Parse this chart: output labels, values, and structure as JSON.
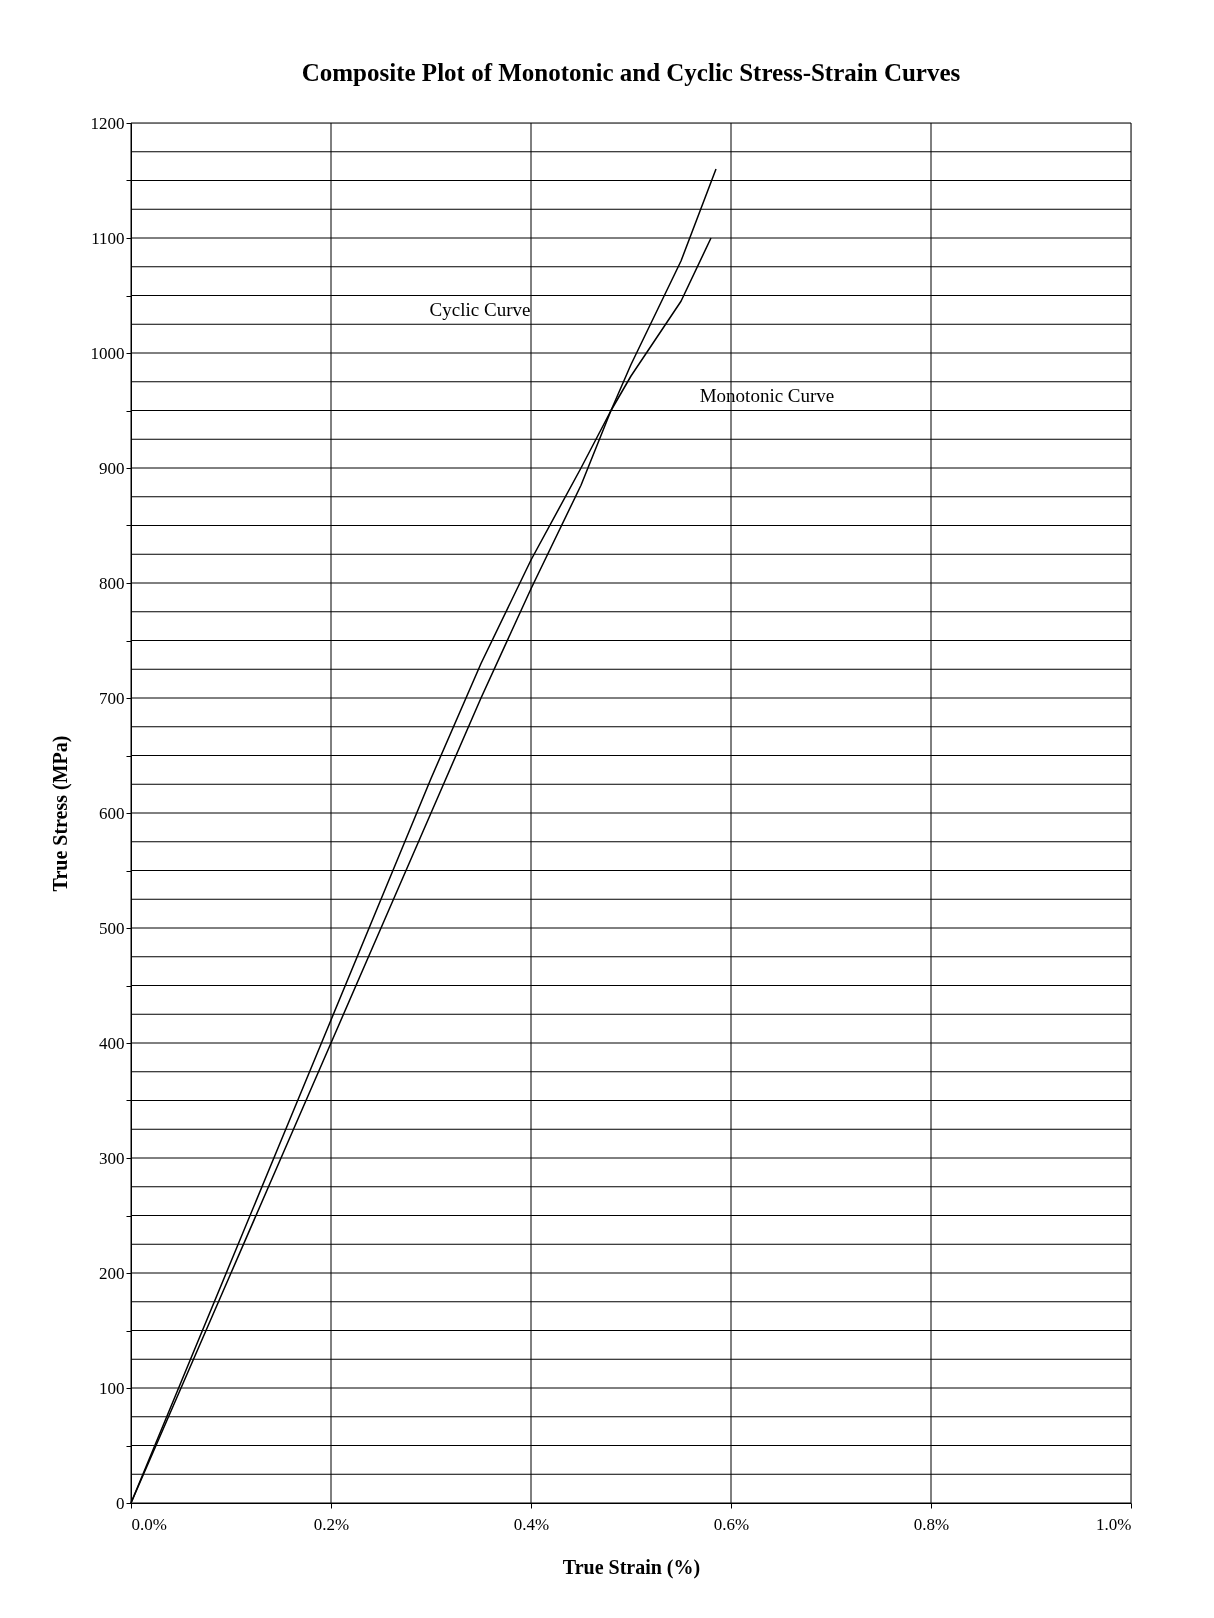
{
  "chart_data": {
    "type": "line",
    "title": "Composite Plot of Monotonic and Cyclic Stress-Strain Curves",
    "xlabel": "True Strain  (%)",
    "ylabel": "True Stress  (MPa)",
    "xlim": [
      0,
      1.0
    ],
    "ylim": [
      0,
      1200
    ],
    "xticks": [
      {
        "value": 0,
        "label": "0.0%"
      },
      {
        "value": 0.2,
        "label": "0.2%"
      },
      {
        "value": 0.4,
        "label": "0.4%"
      },
      {
        "value": 0.6,
        "label": "0.6%"
      },
      {
        "value": 0.8,
        "label": "0.8%"
      },
      {
        "value": 1.0,
        "label": "1.0%"
      }
    ],
    "yticks": [
      0,
      {
        "value": 25,
        "label": null
      },
      {
        "value": 50,
        "label": null
      },
      {
        "value": 75,
        "label": null
      },
      100,
      {
        "value": 125,
        "label": null
      },
      {
        "value": 150,
        "label": null
      },
      {
        "value": 175,
        "label": null
      },
      200,
      {
        "value": 225,
        "label": null
      },
      {
        "value": 250,
        "label": null
      },
      {
        "value": 275,
        "label": null
      },
      300,
      {
        "value": 325,
        "label": null
      },
      {
        "value": 350,
        "label": null
      },
      {
        "value": 375,
        "label": null
      },
      400,
      {
        "value": 425,
        "label": null
      },
      {
        "value": 450,
        "label": null
      },
      {
        "value": 475,
        "label": null
      },
      500,
      {
        "value": 525,
        "label": null
      },
      {
        "value": 550,
        "label": null
      },
      {
        "value": 575,
        "label": null
      },
      600,
      {
        "value": 625,
        "label": null
      },
      {
        "value": 650,
        "label": null
      },
      {
        "value": 675,
        "label": null
      },
      700,
      {
        "value": 725,
        "label": null
      },
      {
        "value": 750,
        "label": null
      },
      {
        "value": 775,
        "label": null
      },
      800,
      {
        "value": 825,
        "label": null
      },
      {
        "value": 850,
        "label": null
      },
      {
        "value": 875,
        "label": null
      },
      900,
      {
        "value": 925,
        "label": null
      },
      {
        "value": 950,
        "label": null
      },
      {
        "value": 975,
        "label": null
      },
      1000,
      {
        "value": 1025,
        "label": null
      },
      {
        "value": 1050,
        "label": null
      },
      {
        "value": 1075,
        "label": null
      },
      1100,
      {
        "value": 1125,
        "label": null
      },
      {
        "value": 1150,
        "label": null
      },
      {
        "value": 1175,
        "label": null
      },
      1200
    ],
    "grid": true,
    "marker": "none",
    "line_style": "solid",
    "series": [
      {
        "color": "#000000",
        "x": [
          0,
          0.05,
          0.1,
          0.15,
          0.2,
          0.25,
          0.3,
          0.35,
          0.4,
          0.45,
          0.48,
          0.5,
          0.55,
          0.58
        ],
        "values": [
          0,
          105,
          210,
          315,
          420,
          525,
          630,
          730,
          820,
          900,
          950,
          980,
          1045,
          1100
        ]
      },
      {
        "color": "#000000",
        "x": [
          0,
          0.05,
          0.1,
          0.15,
          0.2,
          0.25,
          0.3,
          0.35,
          0.4,
          0.45,
          0.48,
          0.5,
          0.55,
          0.585
        ],
        "values": [
          0,
          100,
          200,
          300,
          400,
          500,
          600,
          700,
          795,
          885,
          950,
          990,
          1080,
          1160
        ]
      }
    ],
    "annotations": [
      "Cyclic Curve",
      "Monotonic Curve"
    ]
  }
}
